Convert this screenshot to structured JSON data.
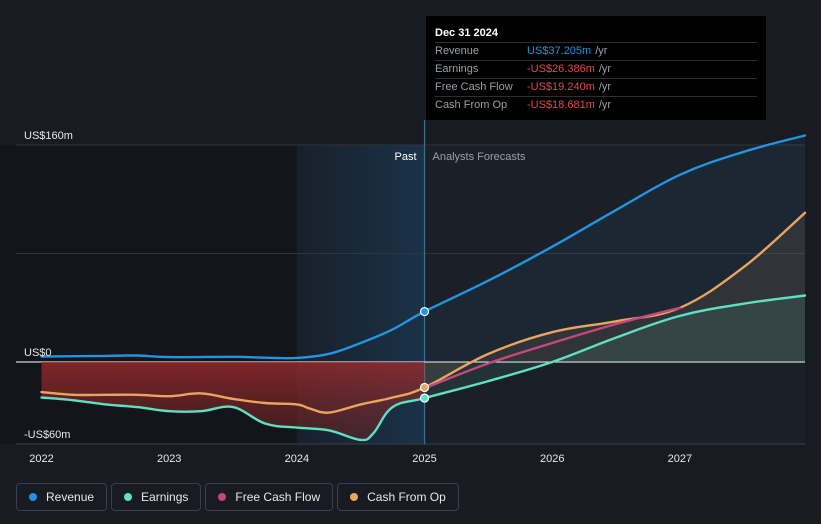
{
  "chart_data": {
    "type": "line",
    "title": "",
    "ylabel": "",
    "xlabel": "",
    "y_tick_labels": [
      "US$160m",
      "US$0",
      "-US$60m"
    ],
    "y_ticks": [
      160,
      0,
      -60
    ],
    "ylim": [
      -60,
      160
    ],
    "xlim": [
      2021.8,
      2027.98
    ],
    "x_ticks": [
      2022,
      2023,
      2024,
      2025,
      2026,
      2027
    ],
    "x_tick_labels": [
      "2022",
      "2023",
      "2024",
      "2025",
      "2026",
      "2027"
    ],
    "past_label": "Past",
    "forecast_label": "Analysts Forecasts",
    "past_start": 2024.0,
    "divider_x": 2025.0,
    "highlight_x": 2025.0,
    "series": [
      {
        "name": "Revenue",
        "color": "#2394df",
        "x": [
          2022.0,
          2022.5,
          2022.75,
          2023.0,
          2023.5,
          2023.75,
          2024.0,
          2024.25,
          2024.5,
          2024.75,
          2025.0,
          2025.5,
          2026.0,
          2026.5,
          2027.0,
          2027.5,
          2027.98
        ],
        "y": [
          4,
          4.5,
          4.8,
          3.6,
          3.8,
          3.2,
          3.0,
          6,
          14,
          24,
          37.205,
          60,
          85,
          112,
          138,
          155,
          167
        ],
        "forecast_from": 2025.0
      },
      {
        "name": "Earnings",
        "color": "#5ee0c3",
        "x": [
          2022.0,
          2022.25,
          2022.5,
          2022.75,
          2023.0,
          2023.25,
          2023.5,
          2023.75,
          2024.0,
          2024.25,
          2024.5,
          2024.6,
          2024.75,
          2025.0,
          2025.5,
          2026.0,
          2026.5,
          2027.0,
          2027.5,
          2027.98
        ],
        "y": [
          -26,
          -28,
          -31,
          -33,
          -36,
          -36,
          -33,
          -45,
          -48,
          -50,
          -57,
          -52,
          -33,
          -26.386,
          -14,
          0,
          18,
          34,
          43,
          49
        ],
        "forecast_from": 2025.0
      },
      {
        "name": "Free Cash Flow",
        "color": "#c4477f",
        "x": [
          2025.0,
          2025.5,
          2026.0,
          2026.5,
          2027.0
        ],
        "y": [
          -19.24,
          -1,
          14,
          28,
          40
        ],
        "forecast_from": 2025.0
      },
      {
        "name": "Cash From Op",
        "color": "#e9a55f",
        "x": [
          2022.0,
          2022.25,
          2022.5,
          2022.75,
          2023.0,
          2023.25,
          2023.5,
          2023.75,
          2024.0,
          2024.1,
          2024.25,
          2024.5,
          2024.75,
          2025.0,
          2025.5,
          2026.0,
          2026.5,
          2027.0,
          2027.5,
          2027.98
        ],
        "y": [
          -22,
          -24,
          -24,
          -24,
          -25,
          -23,
          -27,
          -30,
          -31,
          -34,
          -37,
          -31,
          -26,
          -18.681,
          6,
          22,
          30,
          40,
          70,
          110
        ],
        "forecast_from": 2025.0
      }
    ]
  },
  "tooltip": {
    "date": "Dec 31 2024",
    "rows": [
      {
        "label": "Revenue",
        "value": "US$37.205m",
        "unit": "/yr",
        "color": "#2394df"
      },
      {
        "label": "Earnings",
        "value": "-US$26.386m",
        "unit": "/yr",
        "color": "#e5484d"
      },
      {
        "label": "Free Cash Flow",
        "value": "-US$19.240m",
        "unit": "/yr",
        "color": "#e5484d"
      },
      {
        "label": "Cash From Op",
        "value": "-US$18.681m",
        "unit": "/yr",
        "color": "#e5484d"
      }
    ]
  },
  "legend": {
    "items": [
      {
        "label": "Revenue",
        "color": "#2394df"
      },
      {
        "label": "Earnings",
        "color": "#5ee0c3"
      },
      {
        "label": "Free Cash Flow",
        "color": "#c4477f"
      },
      {
        "label": "Cash From Op",
        "color": "#e9a55f"
      }
    ]
  },
  "colors": {
    "background": "#181b22",
    "past_band": "#1e3a52",
    "grid": "#2e3440",
    "zero_line": "#ffffff",
    "negative_fill": "#8b2a2a"
  }
}
